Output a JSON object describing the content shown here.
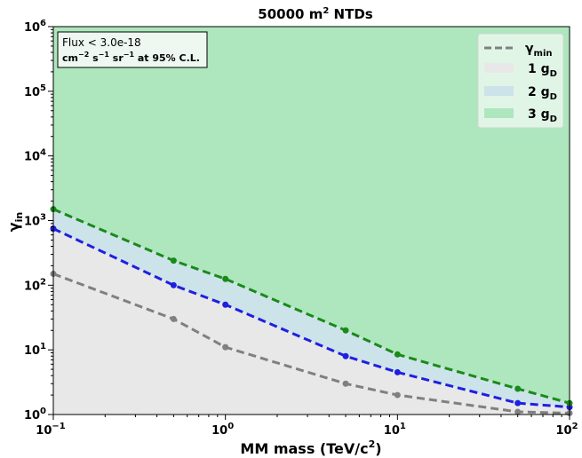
{
  "chart_data": {
    "type": "area",
    "title_main": "50000 m",
    "title_sup": "2",
    "title_rest": " NTDs",
    "xlabel_main": "MM mass (TeV/c",
    "xlabel_sup": "2",
    "xlabel_rest": ")",
    "ylabel_main": "γ",
    "ylabel_sub": "in",
    "x_scale": "log",
    "y_scale": "log",
    "xlim": [
      0.1,
      100
    ],
    "ylim": [
      1,
      1000000
    ],
    "x_ticks": [
      {
        "base": "10",
        "exp": "−1",
        "value": 0.1
      },
      {
        "base": "10",
        "exp": "0",
        "value": 1
      },
      {
        "base": "10",
        "exp": "1",
        "value": 10
      },
      {
        "base": "10",
        "exp": "2",
        "value": 100
      }
    ],
    "y_ticks": [
      {
        "base": "10",
        "exp": "0",
        "value": 1
      },
      {
        "base": "10",
        "exp": "1",
        "value": 10
      },
      {
        "base": "10",
        "exp": "2",
        "value": 100
      },
      {
        "base": "10",
        "exp": "3",
        "value": 1000
      },
      {
        "base": "10",
        "exp": "4",
        "value": 10000
      },
      {
        "base": "10",
        "exp": "5",
        "value": 100000
      },
      {
        "base": "10",
        "exp": "6",
        "value": 1000000
      }
    ],
    "series": [
      {
        "name": "1 g",
        "name_sub": "D",
        "color": "#808080",
        "fill": "#e8e8e8",
        "x": [
          0.1,
          0.5,
          1,
          5,
          10,
          50,
          100
        ],
        "y": [
          150,
          30,
          11,
          3,
          2,
          1.1,
          1.05
        ]
      },
      {
        "name": "2 g",
        "name_sub": "D",
        "color": "#1f1fe0",
        "fill": "#cde3ea",
        "x": [
          0.1,
          0.5,
          1,
          5,
          10,
          50,
          100
        ],
        "y": [
          750,
          100,
          50,
          8,
          4.5,
          1.5,
          1.3
        ]
      },
      {
        "name": "3 g",
        "name_sub": "D",
        "color": "#1a8a1a",
        "fill": "#aee6bd",
        "x": [
          0.1,
          0.5,
          1,
          5,
          10,
          50,
          100
        ],
        "y": [
          1500,
          240,
          125,
          20,
          8.5,
          2.5,
          1.5
        ]
      }
    ],
    "legend": {
      "placement": "top-right",
      "line_entry": {
        "main": "γ",
        "sub": "min",
        "color": "#808080"
      }
    },
    "annotation": {
      "line1": "Flux < 3.0e-18",
      "line2_parts": [
        "cm",
        "−2",
        " s",
        "−1",
        " sr",
        "−1",
        " at 95% C.L."
      ]
    },
    "grid": false
  }
}
